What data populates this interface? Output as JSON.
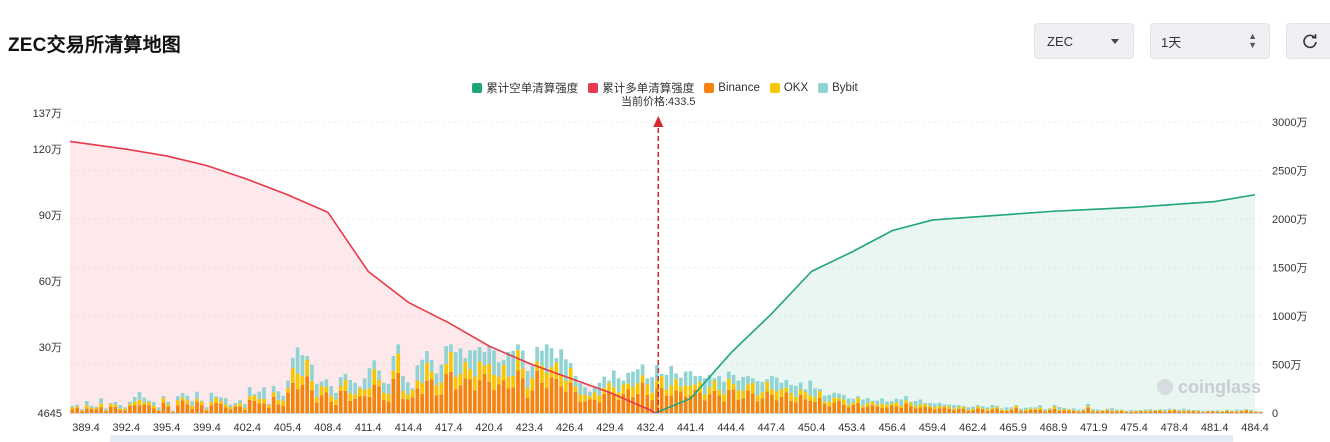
{
  "header": {
    "title": "ZEC交易所清算地图"
  },
  "controls": {
    "symbol_value": "ZEC",
    "range_value": "1天",
    "refresh_icon": "refresh-icon",
    "select_icon": "chevron-down-icon",
    "stepper_icon": "up-down-icon"
  },
  "legend": [
    {
      "label": "累计空单清算强度",
      "color": "#1fa67a"
    },
    {
      "label": "累计多单清算强度",
      "color": "#e8394b"
    },
    {
      "label": "Binance",
      "color": "#f5840c"
    },
    {
      "label": "OKX",
      "color": "#f7c600"
    },
    {
      "label": "Bybit",
      "color": "#8fd3d3"
    }
  ],
  "chart_data": {
    "type": "bar",
    "current_price_label": "当前价格:433.5",
    "current_price": 433.5,
    "watermark": "coinglass",
    "x_tick_labels": [
      "389.4",
      "392.4",
      "395.4",
      "399.4",
      "402.4",
      "405.4",
      "408.4",
      "411.4",
      "414.4",
      "417.4",
      "420.4",
      "423.4",
      "426.4",
      "429.4",
      "432.4",
      "441.4",
      "444.4",
      "447.4",
      "450.4",
      "453.4",
      "456.4",
      "459.4",
      "462.4",
      "465.9",
      "468.9",
      "471.9",
      "475.4",
      "478.4",
      "481.4",
      "484.4"
    ],
    "y_left": {
      "min": 4645,
      "max": 1370000,
      "ticks": [
        "4645",
        "30万",
        "60万",
        "90万",
        "120万",
        "137万"
      ],
      "tick_values": [
        4645,
        300000,
        600000,
        900000,
        1200000,
        1370000
      ]
    },
    "y_right": {
      "min": 0,
      "max": 30000000,
      "ticks": [
        "0",
        "500万",
        "1000万",
        "1500万",
        "2000万",
        "2500万",
        "3000万"
      ],
      "tick_values": [
        0,
        5000000,
        10000000,
        15000000,
        20000000,
        25000000,
        30000000
      ]
    },
    "bars": {
      "colors": {
        "binance": "#f5840c",
        "okx": "#f7c600",
        "bybit": "#8fd3d3"
      },
      "totals": [
        36000,
        42000,
        22000,
        58000,
        37000,
        33000,
        70000,
        25000,
        50000,
        54000,
        40000,
        30000,
        55000,
        76000,
        98000,
        73000,
        60000,
        54000,
        30000,
        80000,
        55000,
        16000,
        80000,
        94000,
        82000,
        57000,
        100000,
        60000,
        30000,
        95000,
        80000,
        75000,
        71000,
        42000,
        50000,
        62000,
        45000,
        120000,
        90000,
        100000,
        120000,
        46000,
        125000,
        102000,
        82000,
        150000,
        252000,
        298000,
        264000,
        260000,
        220000,
        135000,
        145000,
        155000,
        125000,
        95000,
        165000,
        180000,
        152000,
        140000,
        122000,
        160000,
        205000,
        240000,
        195000,
        140000,
        135000,
        260000,
        312000,
        170000,
        142000,
        115000,
        218000,
        243000,
        282000,
        242000,
        182000,
        222000,
        304000,
        312000,
        277000,
        294000,
        250000,
        285000,
        285000,
        300000,
        278000,
        305000,
        285000,
        232000,
        242000,
        278000,
        283000,
        312000,
        284000,
        192000,
        215000,
        300000,
        283000,
        312000,
        295000,
        250000,
        290000,
        245000,
        228000,
        170000,
        138000,
        120000,
        100000,
        120000,
        140000,
        168000,
        150000,
        195000,
        160000,
        150000,
        185000,
        190000,
        200000,
        222000,
        160000,
        165000,
        220000,
        180000,
        175000,
        215000,
        182000,
        163000,
        190000,
        192000,
        170000,
        170000,
        160000,
        175000,
        160000,
        170000,
        145000,
        190000,
        175000,
        150000,
        166000,
        170000,
        160000,
        148000,
        144000,
        156000,
        170000,
        163000,
        140000,
        152000,
        130000,
        126000,
        141000,
        110000,
        150000,
        115000,
        112000,
        82000,
        86000,
        95000,
        92000,
        85000,
        70000,
        68000,
        80000,
        65000,
        72000,
        60000,
        60000,
        70000,
        56000,
        58000,
        68000,
        65000,
        80000,
        55000,
        58000,
        65000,
        50000,
        50000,
        47000,
        50000,
        43000,
        42000,
        40000,
        40000,
        36000,
        30000,
        33000,
        40000,
        35000,
        30000,
        40000,
        37000,
        25000,
        30000,
        30000,
        40000,
        24000,
        28000,
        30000,
        30000,
        40000,
        22000,
        26000,
        40000,
        32000,
        27000,
        23000,
        25000,
        20000,
        22000,
        45000,
        22000,
        20000,
        18000,
        24000,
        26000,
        20000,
        20000,
        15000,
        18000,
        16000,
        18000,
        20000,
        22000,
        19000,
        22000,
        20000,
        24000,
        23000,
        20000,
        24000,
        20000,
        18000,
        18000,
        14000,
        15000,
        16000,
        17000,
        14000,
        20000,
        16000,
        20000,
        18000,
        22000,
        19000,
        15000,
        12000
      ]
    },
    "cumulative_long": {
      "color": "#e8394b",
      "area_color": "rgba(244,120,130,0.16)",
      "x": [
        389.4,
        392.4,
        395.4,
        399.4,
        402.4,
        405.4,
        408.4,
        411.4,
        414.4,
        417.4,
        420.4,
        423.4,
        426.4,
        429.4,
        432.4,
        433.5
      ],
      "values": [
        28000000,
        27200000,
        26500000,
        25500000,
        24100000,
        22500000,
        20700000,
        14600000,
        11400000,
        9300000,
        6900000,
        5100000,
        3600000,
        2100000,
        300000,
        0
      ]
    },
    "cumulative_short": {
      "color": "#1fa67a",
      "area_color": "rgba(120,200,170,0.16)",
      "x": [
        433.5,
        441.4,
        444.4,
        447.4,
        450.4,
        453.4,
        456.4,
        459.4,
        462.4,
        465.9,
        468.9,
        471.9,
        475.4,
        478.4,
        481.4,
        484.4
      ],
      "values": [
        0,
        1500000,
        6200000,
        10200000,
        14600000,
        16600000,
        18800000,
        19900000,
        20200000,
        20500000,
        20800000,
        21000000,
        21200000,
        21500000,
        21800000,
        22500000
      ]
    }
  }
}
